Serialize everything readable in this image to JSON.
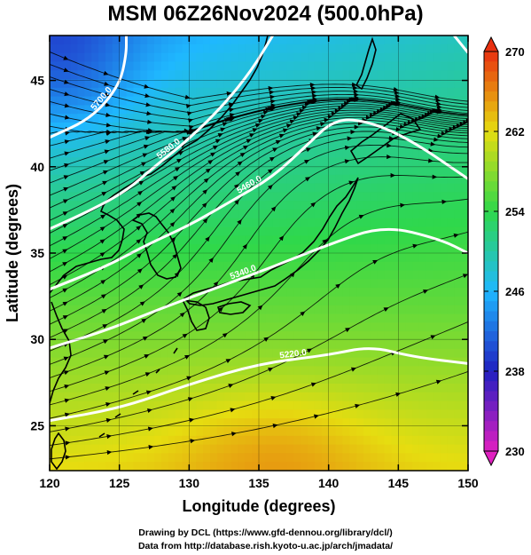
{
  "title": "MSM 06Z26Nov2024 (500.0hPa)",
  "credits": {
    "line1": "Drawing by DCL (https://www.gfd-dennou.org/library/dcl/)",
    "line2": "Data from http://database.rish.kyoto-u.ac.jp/arch/jmadata/"
  },
  "chart_data": {
    "type": "heatmap",
    "title": "MSM 06Z26Nov2024 (500.0hPa)",
    "xlabel": "Longitude (degrees)",
    "ylabel": "Latitude  (degrees)",
    "xlim": [
      120,
      150
    ],
    "ylim": [
      22.4,
      47.6
    ],
    "x_ticks": [
      120,
      125,
      130,
      135,
      140,
      145,
      150
    ],
    "y_ticks": [
      25,
      30,
      35,
      40,
      45
    ],
    "grid": true,
    "colorbar": {
      "range": [
        230,
        270
      ],
      "ticks": [
        230,
        238,
        246,
        254,
        262,
        270
      ],
      "colors": [
        "#e020c0",
        "#2020c0",
        "#1fb8ff",
        "#2fd84a",
        "#e6dd10",
        "#e83010"
      ]
    },
    "contours": [
      {
        "label": "5220.0",
        "points": [
          [
            120,
            25.3
          ],
          [
            125,
            26.0
          ],
          [
            130,
            27.4
          ],
          [
            135,
            28.6
          ],
          [
            140,
            29.1
          ],
          [
            143,
            29.6
          ],
          [
            146,
            29.0
          ],
          [
            150,
            28.6
          ]
        ]
      },
      {
        "label": "5340.0",
        "points": [
          [
            120,
            29.5
          ],
          [
            124,
            30.5
          ],
          [
            128,
            31.8
          ],
          [
            132,
            33.0
          ],
          [
            136,
            34.2
          ],
          [
            140,
            35.5
          ],
          [
            144,
            36.6
          ],
          [
            148,
            35.8
          ],
          [
            150,
            35.0
          ]
        ]
      },
      {
        "label": "5460.0",
        "points": [
          [
            120,
            32.9
          ],
          [
            124,
            34.2
          ],
          [
            127,
            35.5
          ],
          [
            130,
            36.6
          ],
          [
            133,
            38.0
          ],
          [
            136,
            39.4
          ],
          [
            138.5,
            41.3
          ],
          [
            140.5,
            42.8
          ],
          [
            143,
            42.6
          ],
          [
            146,
            41.5
          ],
          [
            150,
            39.3
          ]
        ]
      },
      {
        "label": "5580.0",
        "points": [
          [
            120,
            36.4
          ],
          [
            123,
            37.5
          ],
          [
            125.5,
            38.6
          ],
          [
            127.5,
            40.0
          ],
          [
            130,
            41.6
          ],
          [
            132.5,
            43.6
          ],
          [
            134.5,
            45.6
          ],
          [
            136,
            47.6
          ]
        ]
      },
      {
        "label": "5700.0",
        "points": [
          [
            120,
            41.7
          ],
          [
            123,
            42.8
          ],
          [
            125,
            44.7
          ],
          [
            125.5,
            46.5
          ],
          [
            125.5,
            47.6
          ]
        ]
      },
      {
        "label": "",
        "points": [
          [
            149,
            47.6
          ],
          [
            150,
            46.6
          ]
        ]
      }
    ],
    "wind_field": "streamlines, predominantly westerly with southwesterly component over Japan"
  }
}
